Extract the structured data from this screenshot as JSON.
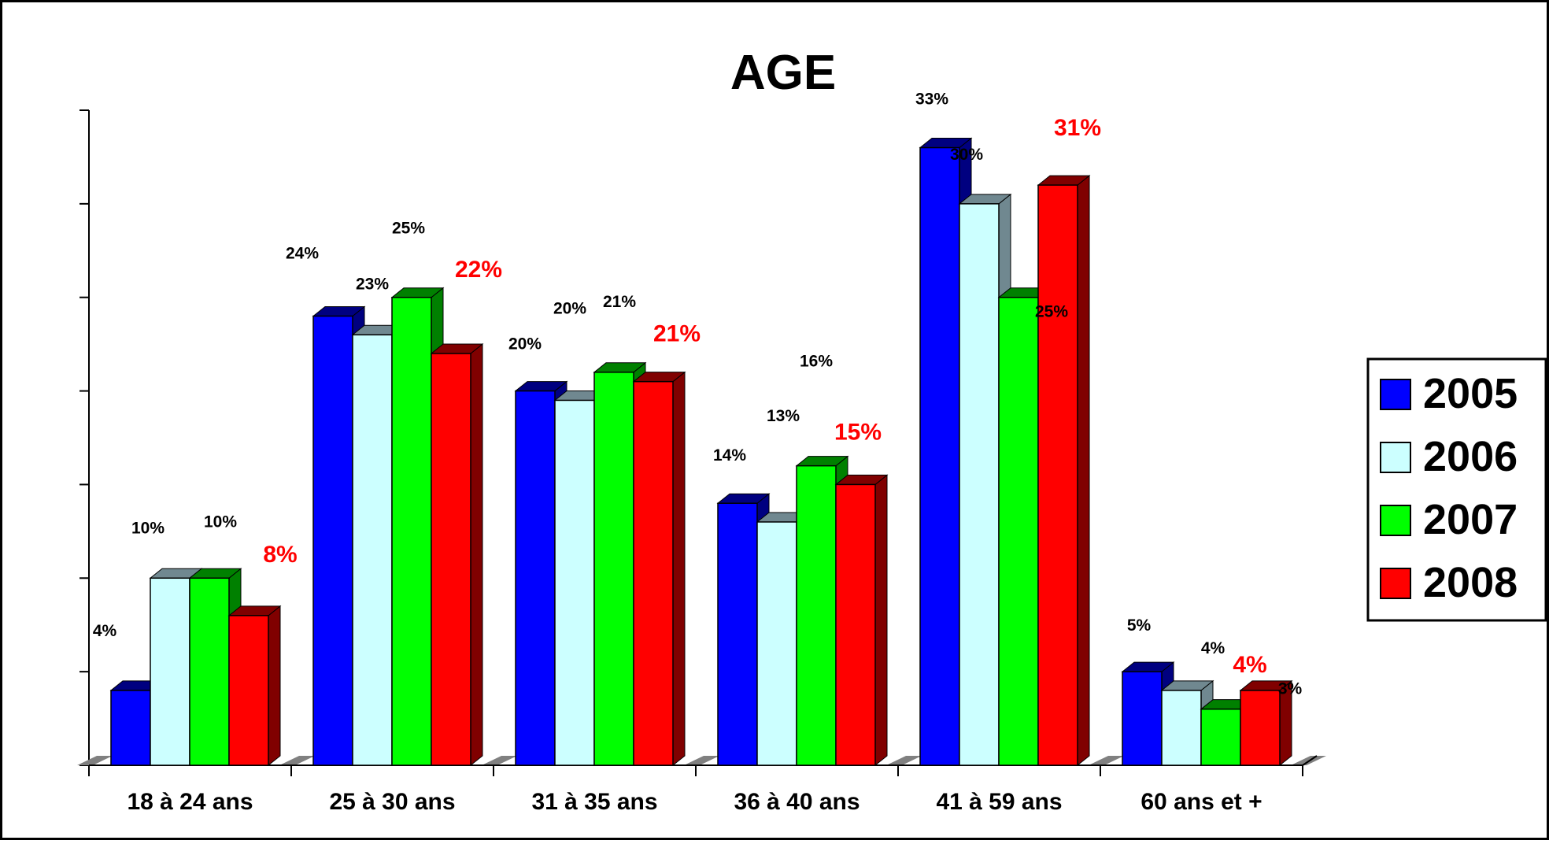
{
  "chart_data": {
    "type": "bar",
    "title": "AGE",
    "xlabel": "",
    "ylabel": "",
    "ylim": [
      0,
      35
    ],
    "grid": false,
    "legend_position": "right",
    "categories": [
      "18 à 24 ans",
      "25 à 30 ans",
      "31 à 35 ans",
      "36 à 40 ans",
      "41 à 59 ans",
      "60 ans et +"
    ],
    "series": [
      {
        "name": "2005",
        "color": "#0000FF",
        "side_color": "#000080",
        "values": [
          4,
          24,
          20,
          14,
          33,
          5
        ],
        "labels": [
          "4%",
          "24%",
          "20%",
          "14%",
          "33%",
          "5%"
        ],
        "label_color": "#000000"
      },
      {
        "name": "2006",
        "color": "#CCFFFF",
        "side_color": "#708890",
        "values": [
          10,
          23,
          19.5,
          13,
          30,
          4
        ],
        "labels": [
          "10%",
          "23%",
          "20%",
          "13%",
          "30%",
          "4%"
        ],
        "label_color": "#000000"
      },
      {
        "name": "2007",
        "color": "#00FF00",
        "side_color": "#008000",
        "values": [
          10,
          25,
          21,
          16,
          25,
          3
        ],
        "labels": [
          "10%",
          "25%",
          "21%",
          "16%",
          "25%",
          "3%"
        ],
        "label_color": "#000000"
      },
      {
        "name": "2008",
        "color": "#FF0000",
        "side_color": "#800000",
        "values": [
          8,
          22,
          20.5,
          15,
          31,
          4
        ],
        "labels": [
          "8%",
          "22%",
          "21%",
          "15%",
          "31%",
          "4%"
        ],
        "label_color": "#FF0000"
      }
    ]
  }
}
